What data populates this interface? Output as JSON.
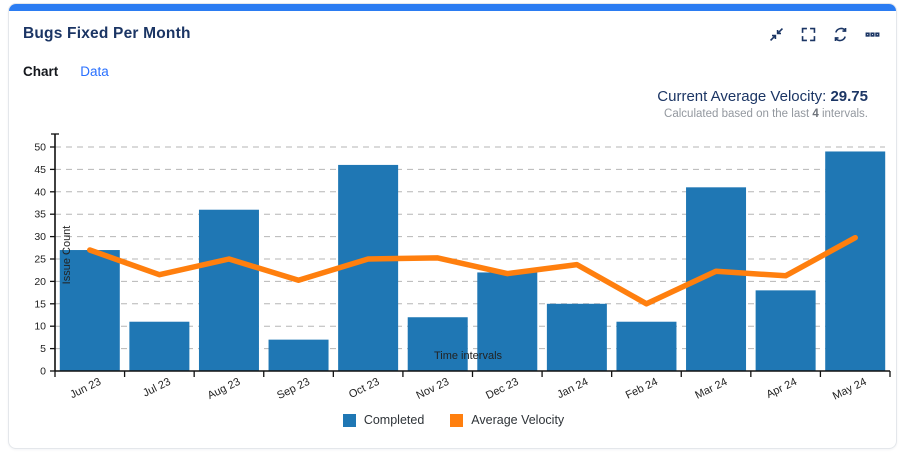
{
  "header": {
    "title": "Bugs Fixed Per Month",
    "toolbar_icons": [
      "collapse-icon",
      "expand-fullscreen-icon",
      "refresh-icon",
      "more-options-icon"
    ]
  },
  "tabs": {
    "chart": "Chart",
    "data": "Data"
  },
  "velocity": {
    "label": "Current Average Velocity: ",
    "value": "29.75",
    "note_prefix": "Calculated based on the last ",
    "note_value": "4",
    "note_suffix": " intervals."
  },
  "colors": {
    "accent_blue": "#2b7cf2",
    "bar_blue": "#1f77b4",
    "line_orange": "#ff7f0e",
    "title_navy": "#1b3564",
    "link_blue": "#2970ff"
  },
  "chart_data": {
    "type": "bar",
    "title": "Bugs Fixed Per Month",
    "categories": [
      "Jun 23",
      "Jul 23",
      "Aug 23",
      "Sep 23",
      "Oct 23",
      "Nov 23",
      "Dec 23",
      "Jan 24",
      "Feb 24",
      "Mar 24",
      "Apr 24",
      "May 24"
    ],
    "series": [
      {
        "name": "Completed",
        "type": "bar",
        "color": "#1f77b4",
        "values": [
          27,
          11,
          36,
          7,
          46,
          12,
          22,
          15,
          11,
          41,
          18,
          49
        ]
      },
      {
        "name": "Average Velocity",
        "type": "line",
        "color": "#ff7f0e",
        "values": [
          27,
          21.5,
          25,
          20.25,
          25,
          25.25,
          21.75,
          23.75,
          15,
          22.25,
          21.25,
          29.75
        ]
      }
    ],
    "xlabel": "Time intervals",
    "ylabel": "Issue Count",
    "ylim": [
      0,
      50
    ],
    "ytick_step": 5,
    "grid": true,
    "legend_position": "bottom"
  }
}
